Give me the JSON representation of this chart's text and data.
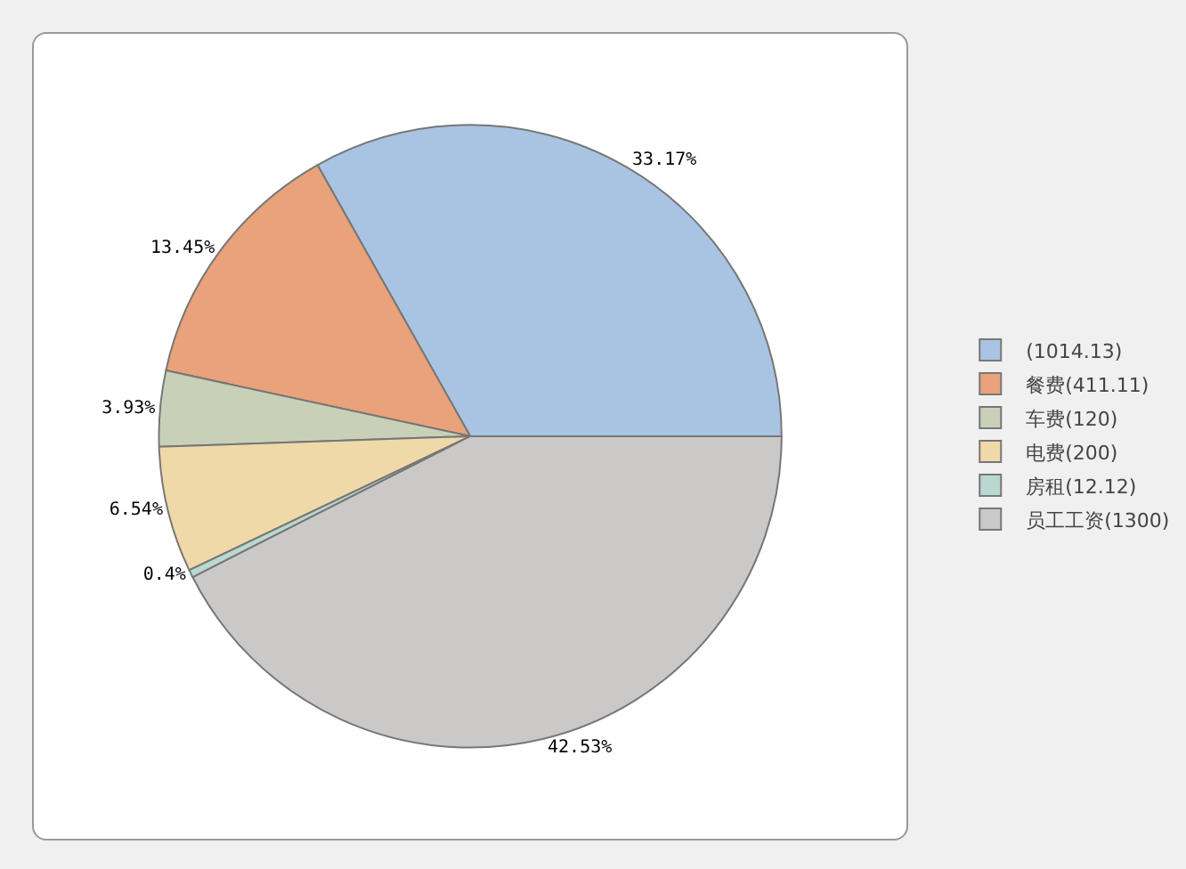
{
  "chart_data": {
    "type": "pie",
    "categories": [
      "(1014.13)",
      "餐费(411.11)",
      "车费(120)",
      "电费(200)",
      "房租(12.12)",
      "员工工资(1300)"
    ],
    "values": [
      33.17,
      13.45,
      3.93,
      6.54,
      0.4,
      42.53
    ],
    "value_labels": [
      "33.17%",
      "13.45%",
      "3.93%",
      "6.54%",
      "0.4%",
      "42.53%"
    ],
    "colors": [
      "#a9c4e2",
      "#e9a27a",
      "#c9d0b8",
      "#f0d9a8",
      "#b8d8d0",
      "#cbc8c8"
    ],
    "legend": "right"
  }
}
